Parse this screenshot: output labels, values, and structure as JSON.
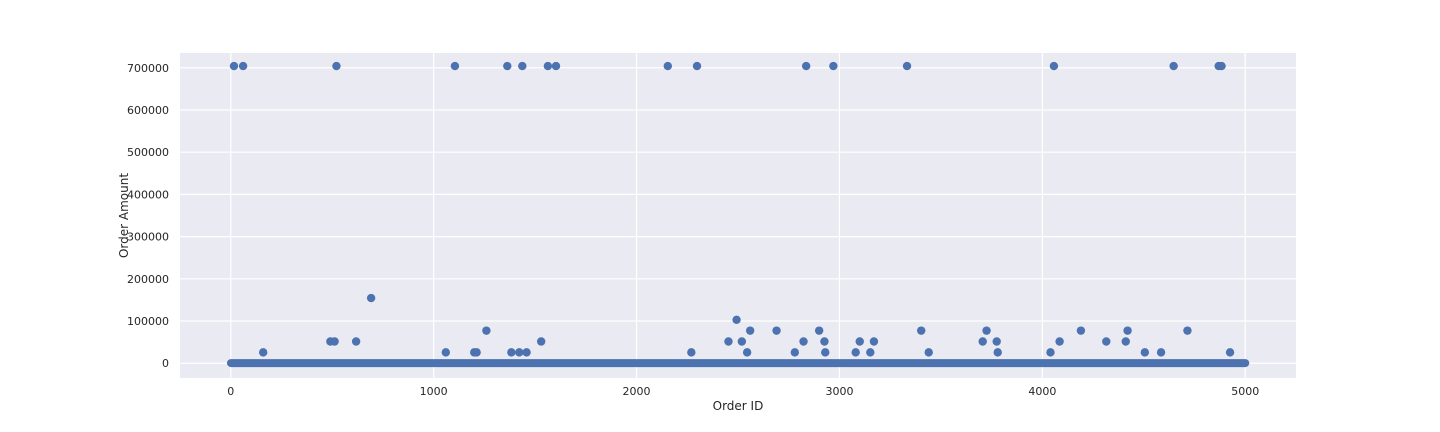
{
  "chart_data": {
    "type": "scatter",
    "title": "",
    "xlabel": "Order ID",
    "ylabel": "Order Amount",
    "xlim": [
      -250,
      5250
    ],
    "ylim": [
      -35000,
      735000
    ],
    "xticks": [
      0,
      1000,
      2000,
      3000,
      4000,
      5000
    ],
    "yticks": [
      0,
      100000,
      200000,
      300000,
      400000,
      500000,
      600000,
      700000
    ],
    "xtick_labels": [
      "0",
      "1000",
      "2000",
      "3000",
      "4000",
      "5000"
    ],
    "ytick_labels": [
      "0",
      "100000",
      "200000",
      "300000",
      "400000",
      "500000",
      "600000",
      "700000"
    ],
    "grid": true,
    "legend": "none",
    "colors": {
      "background": "#eaeaf2",
      "grid": "#ffffff",
      "marker": "#4c72b0"
    },
    "dense_baseline": {
      "x_range": [
        1,
        5000
      ],
      "y_approx": 300,
      "description_note": ""
    },
    "series": [
      {
        "x": [
          16,
          61,
          521,
          1105,
          1363,
          1437,
          1563,
          1603,
          2154,
          2298,
          2836,
          2970,
          3333,
          4057,
          4647,
          4869,
          4883,
          692,
          491,
          512,
          618,
          1530,
          2453,
          2519,
          2823,
          2926,
          3100,
          3170,
          3706,
          3775,
          4085,
          4315,
          4411,
          2493,
          1260,
          2560,
          2690,
          2900,
          3403,
          3725,
          4190,
          4420,
          4715,
          160,
          1060,
          1200,
          1212,
          1383,
          1422,
          1458,
          2270,
          2545,
          2780,
          2930,
          3080,
          3152,
          3440,
          3780,
          4040,
          4505,
          4585,
          4925
        ],
        "y": [
          704000,
          704000,
          704000,
          704000,
          704000,
          704000,
          704000,
          704000,
          704000,
          704000,
          704000,
          704000,
          704000,
          704000,
          704000,
          704000,
          704000,
          154350,
          51450,
          51450,
          51450,
          51450,
          51450,
          51450,
          51450,
          51450,
          51450,
          51450,
          51450,
          51450,
          51450,
          51450,
          51450,
          102900,
          77175,
          77175,
          77175,
          77175,
          77175,
          77175,
          77175,
          77175,
          77175,
          25725,
          25725,
          25725,
          25725,
          25725,
          25725,
          25725,
          25725,
          25725,
          25725,
          25725,
          25725,
          25725,
          25725,
          25725,
          25725,
          25725,
          25725,
          25725
        ]
      }
    ]
  }
}
